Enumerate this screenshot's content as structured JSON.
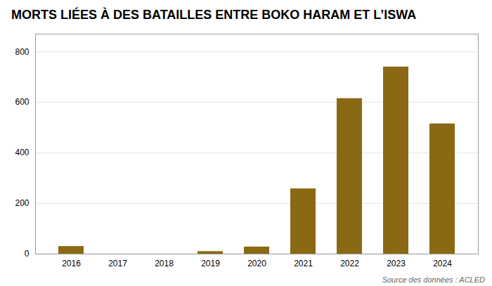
{
  "chart_data": {
    "type": "bar",
    "title": "MORTS LIÉES À DES BATAILLES ENTRE BOKO HARAM ET L’ISWA",
    "categories": [
      "2016",
      "2017",
      "2018",
      "2019",
      "2020",
      "2021",
      "2022",
      "2023",
      "2024"
    ],
    "values": [
      30,
      0,
      0,
      10,
      28,
      258,
      615,
      740,
      515
    ],
    "color": "#8B6914",
    "ylim": [
      0,
      870
    ],
    "yticks": [
      0,
      200,
      400,
      600,
      800
    ],
    "grid": true,
    "annotations": [
      "Source des données : ACLED"
    ]
  }
}
